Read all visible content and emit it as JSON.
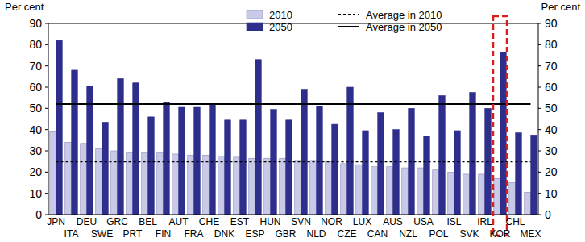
{
  "chart_data": {
    "type": "bar",
    "y_label": "Per cent",
    "y2_label": "Per cent",
    "categories": [
      "JPN",
      "ITA",
      "DEU",
      "SWE",
      "GRC",
      "PRT",
      "BEL",
      "FIN",
      "AUT",
      "FRA",
      "CHE",
      "DNK",
      "EST",
      "ESP",
      "HUN",
      "GBR",
      "SVN",
      "NLD",
      "NOR",
      "CZE",
      "LUX",
      "CAN",
      "AUS",
      "NZL",
      "USA",
      "POL",
      "ISL",
      "SVK",
      "IRL",
      "KOR",
      "CHL",
      "MEX"
    ],
    "series": [
      {
        "name": "2010",
        "color": "#c9c9e8",
        "type": "bar",
        "values": [
          39,
          34,
          33.5,
          31,
          30,
          29,
          29,
          29,
          28.5,
          28,
          28,
          27.5,
          27,
          26.5,
          26.5,
          26.5,
          25.5,
          25.5,
          25,
          24,
          23.5,
          22.5,
          22.5,
          22,
          22,
          21,
          20,
          19,
          19,
          17,
          15,
          10.5
        ]
      },
      {
        "name": "2050",
        "color": "#2e2e8c",
        "type": "bar",
        "values": [
          82,
          68,
          60.5,
          43.5,
          64,
          62,
          46,
          53,
          50.5,
          50.5,
          52,
          44.5,
          44.5,
          73,
          49.5,
          44.5,
          59,
          51,
          42.5,
          60,
          39.5,
          48,
          40,
          50,
          37,
          56,
          39.5,
          57.5,
          50,
          76.5,
          38.5,
          37.5
        ]
      },
      {
        "name": "Average in 2010",
        "color": "#000000",
        "type": "line",
        "line_style": "dotted",
        "values": [
          25,
          25,
          25,
          25,
          25,
          25,
          25,
          25,
          25,
          25,
          25,
          25,
          25,
          25,
          25,
          25,
          25,
          25,
          25,
          25,
          25,
          25,
          25,
          25,
          25,
          25,
          25,
          25,
          25,
          25,
          25,
          25
        ]
      },
      {
        "name": "Average in 2050",
        "color": "#000000",
        "type": "line",
        "line_style": "solid",
        "values": [
          52,
          52,
          52,
          52,
          52,
          52,
          52,
          52,
          52,
          52,
          52,
          52,
          52,
          52,
          52,
          52,
          52,
          52,
          52,
          52,
          52,
          52,
          52,
          52,
          52,
          52,
          52,
          52,
          52,
          52,
          52,
          52
        ]
      }
    ],
    "ylim": [
      0,
      90
    ],
    "yticks": [
      0,
      10,
      20,
      30,
      40,
      50,
      60,
      70,
      80,
      90
    ],
    "y2lim": [
      0,
      90
    ],
    "y2ticks": [
      0,
      10,
      20,
      30,
      40,
      50,
      60,
      70,
      80,
      90
    ],
    "legend": "top",
    "grid": false
  }
}
